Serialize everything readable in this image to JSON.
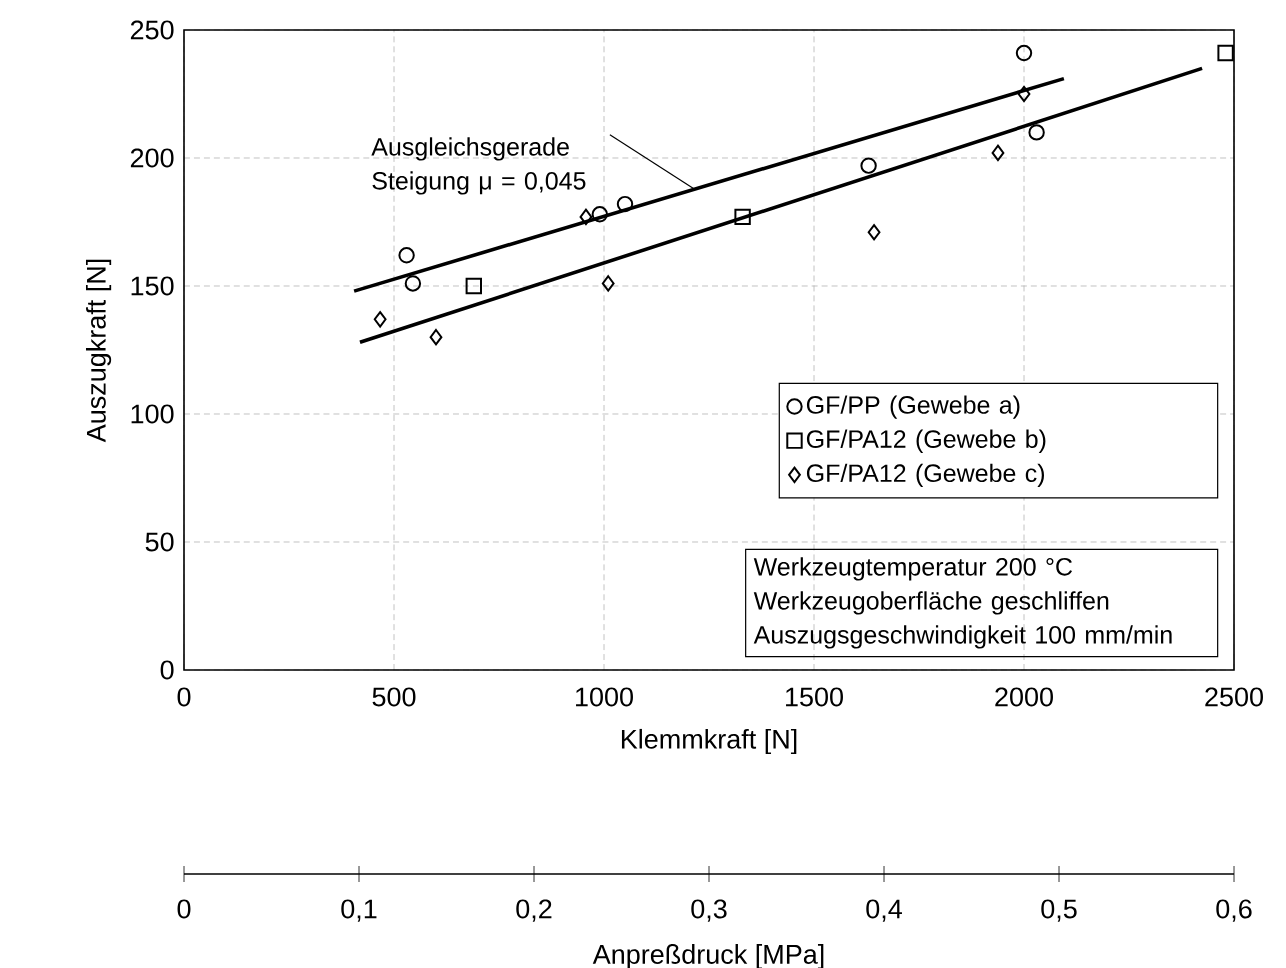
{
  "chart_data": {
    "type": "scatter",
    "xlabel": "Klemmkraft [N]",
    "ylabel": "Auszugkraft [N]",
    "x2label": "Anpreßdruck [MPa]",
    "xlim": [
      0,
      2500
    ],
    "xticks": [
      0,
      500,
      1000,
      1500,
      2000,
      2500
    ],
    "ylim": [
      0,
      250
    ],
    "yticks": [
      0,
      50,
      100,
      150,
      200,
      250
    ],
    "x2lim": [
      0,
      0.6
    ],
    "x2ticks": [
      0,
      {
        "value": 0.1,
        "label": "0,1"
      },
      {
        "value": 0.2,
        "label": "0,2"
      },
      {
        "value": 0.3,
        "label": "0,3"
      },
      {
        "value": 0.4,
        "label": "0,4"
      },
      {
        "value": 0.5,
        "label": "0,5"
      },
      {
        "value": 0.6,
        "label": "0,6"
      }
    ],
    "grid": true,
    "legend": "bottom right",
    "series": [
      {
        "name": "GF/PP (Gewebe a)",
        "color": "#000000",
        "marker": "circle",
        "x": [
          530,
          545,
          990,
          1050,
          1630,
          2000,
          2030
        ],
        "values": [
          162,
          151,
          178,
          182,
          197,
          241,
          210
        ]
      },
      {
        "name": "GF/PA12 (Gewebe b)",
        "color": "#000000",
        "marker": "square",
        "x": [
          690,
          1330,
          2480
        ],
        "values": [
          150,
          177,
          241
        ]
      },
      {
        "name": "GF/PA12 (Gewebe c)",
        "color": "#000000",
        "marker": "diamond",
        "x": [
          467,
          600,
          957,
          1010,
          1643,
          1938,
          2000
        ],
        "values": [
          137,
          130,
          177,
          151,
          171,
          202,
          225
        ]
      },
      {
        "type": "line",
        "color": "#000000",
        "marker": "none",
        "x": [
          405,
          2095
        ],
        "values": [
          148,
          231
        ]
      },
      {
        "type": "line",
        "color": "#000000",
        "marker": "none",
        "x": [
          419,
          2424
        ],
        "values": [
          128,
          235
        ]
      }
    ],
    "annotations": [
      {
        "text": "Ausgleichsgerade Steigung μ = 0,045",
        "x": 1214,
        "y": 188
      },
      "Werkzeugtemperatur 200 °C",
      "Werkzeugoberfläche geschliffen",
      "Auszugsgeschwindigkeit 100 mm/min"
    ]
  }
}
